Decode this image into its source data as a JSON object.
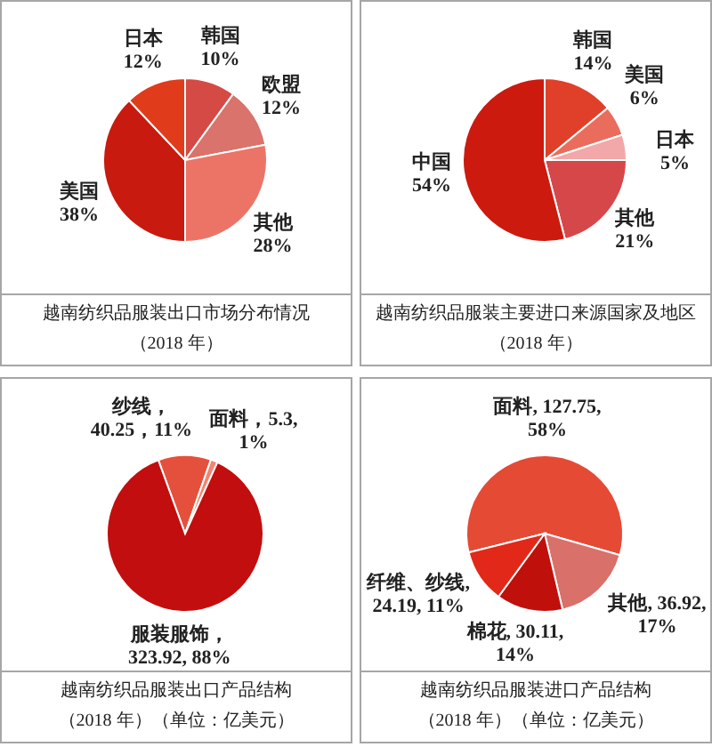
{
  "chart_data": [
    {
      "type": "pie",
      "title": "越南纺织品服装出口市场分布情况",
      "subtitle": "（2018 年）",
      "categories": [
        "韩国",
        "欧盟",
        "其他",
        "美国",
        "日本"
      ],
      "values": [
        10,
        12,
        28,
        38,
        12
      ],
      "colors": [
        "#d54a45",
        "#d9736b",
        "#ec7467",
        "#c91a0f",
        "#e03c1c"
      ],
      "value_labels": [
        "10%",
        "12%",
        "28%",
        "38%",
        "12%"
      ]
    },
    {
      "type": "pie",
      "title": "越南纺织品服装主要进口来源国家及地区",
      "subtitle": "（2018 年）",
      "categories": [
        "韩国",
        "美国",
        "日本",
        "其他",
        "中国"
      ],
      "values": [
        14,
        6,
        5,
        21,
        54
      ],
      "colors": [
        "#e0402a",
        "#ea6c5c",
        "#f2a8a8",
        "#d6474a",
        "#cc1a0e"
      ],
      "value_labels": [
        "14%",
        "6%",
        "5%",
        "21%",
        "54%"
      ]
    },
    {
      "type": "pie",
      "title": "越南纺织品服装出口产品结构",
      "subtitle": "（2018 年）（单位：亿美元）",
      "categories": [
        "纱线",
        "面料",
        "服装服饰"
      ],
      "values": [
        40.25,
        5.3,
        323.92
      ],
      "colors": [
        "#e5503d",
        "#f28472",
        "#c20e0e"
      ],
      "value_labels": [
        "，40.25，11%",
        "，5.3, 1%",
        "，323.92, 88%"
      ]
    },
    {
      "type": "pie",
      "title": "越南纺织品服装进口产品结构",
      "subtitle": "（2018 年）（单位：亿美元）",
      "categories": [
        "面料",
        "其他",
        "棉花",
        "纤维、纱线"
      ],
      "values": [
        127.75,
        36.92,
        30.11,
        24.19
      ],
      "colors": [
        "#e54a35",
        "#d9706a",
        "#c0100c",
        "#e22818"
      ],
      "value_labels": [
        ", 127.75, 58%",
        ", 36.92, 17%",
        ", 30.11, 14%",
        ", 24.19, 11%"
      ]
    }
  ]
}
